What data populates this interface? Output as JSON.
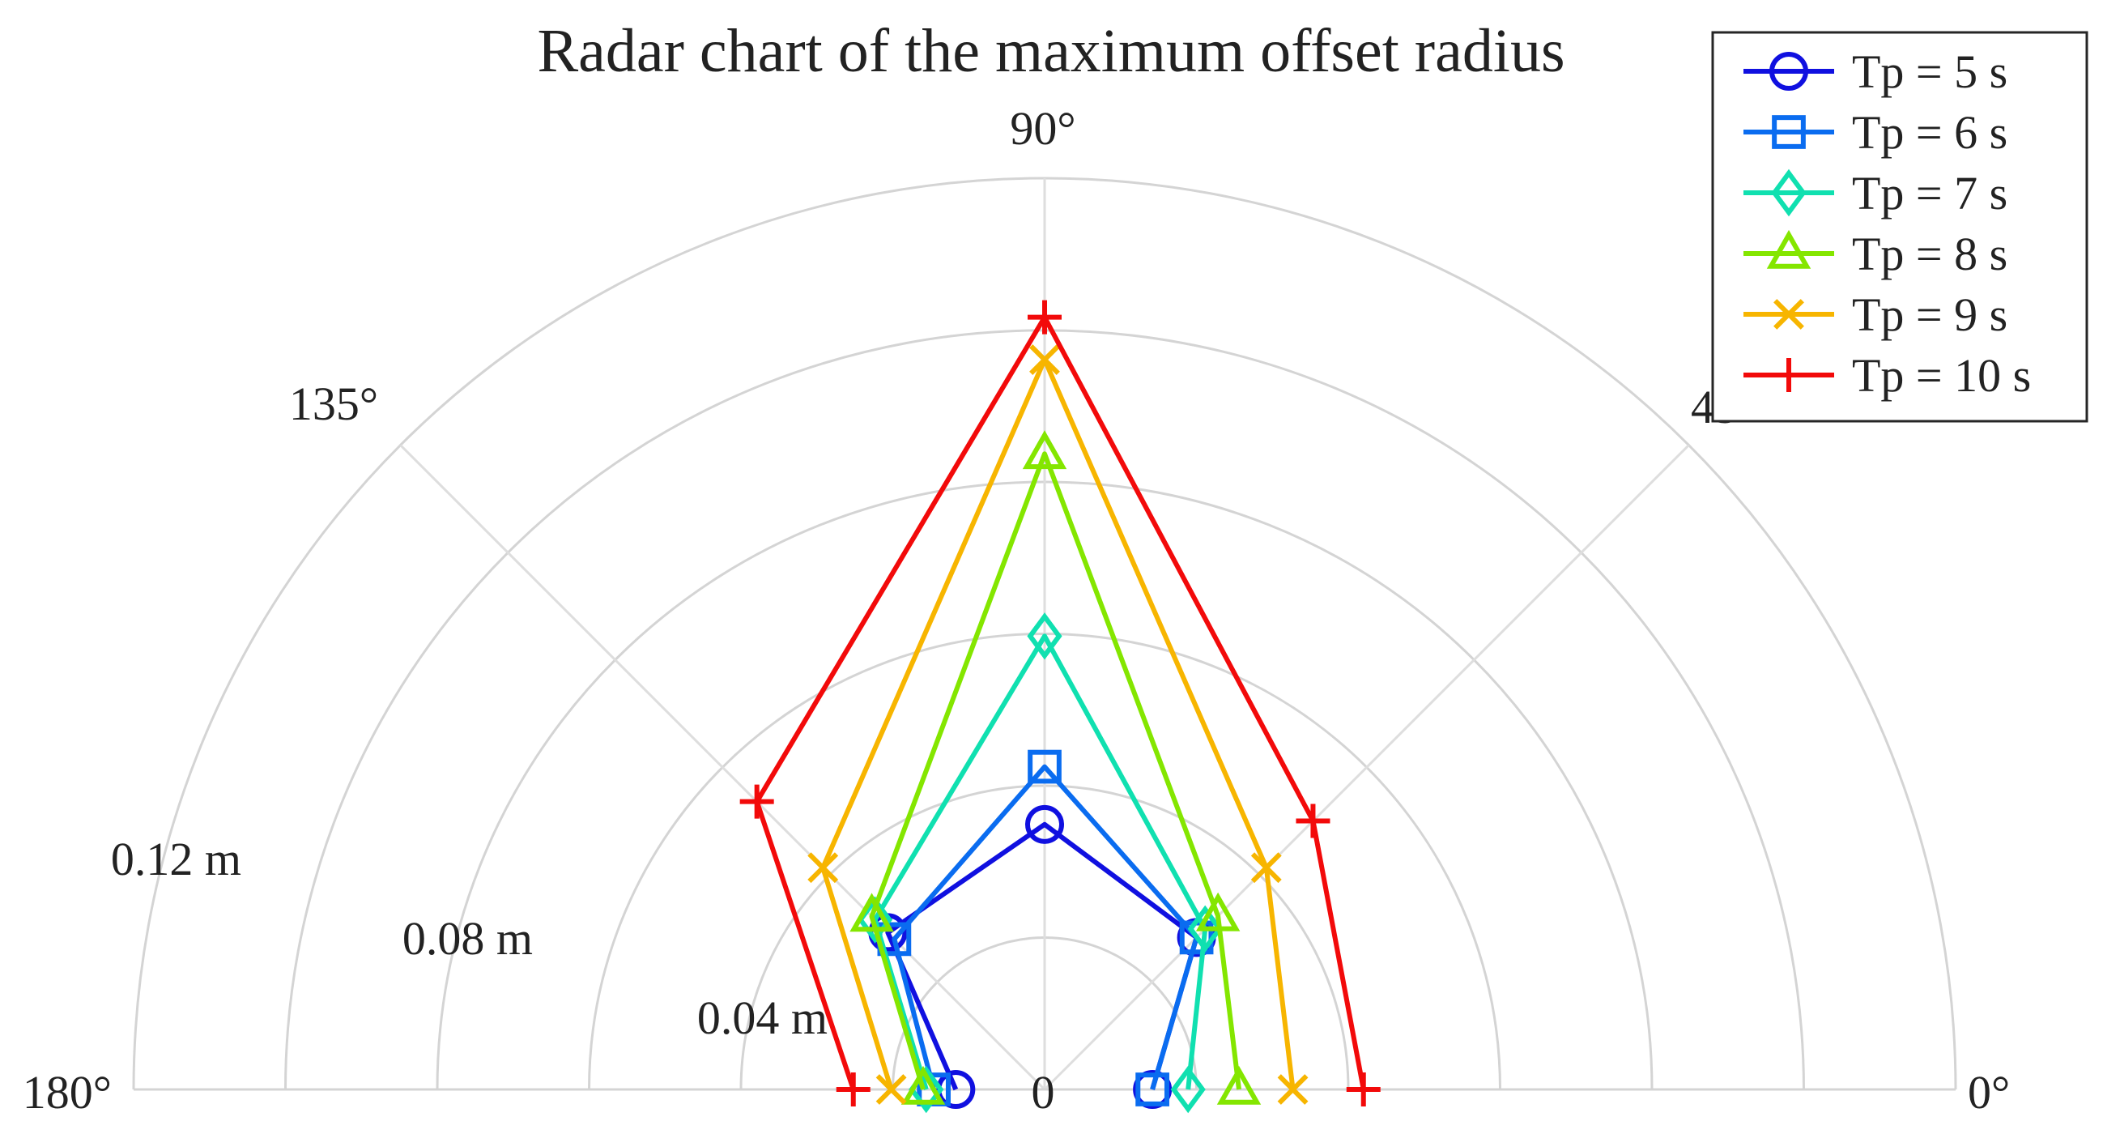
{
  "chart_data": {
    "type": "radar",
    "title": "Radar chart of the maximum offset radius",
    "projection": "polar",
    "theta_range_deg": [
      0,
      180
    ],
    "r_range": [
      0,
      0.12
    ],
    "r_unit": "m",
    "angle_labels": [
      {
        "deg": 0,
        "text": "0°"
      },
      {
        "deg": 45,
        "text": "45°"
      },
      {
        "deg": 90,
        "text": "90°"
      },
      {
        "deg": 135,
        "text": "135°"
      },
      {
        "deg": 180,
        "text": "180°"
      }
    ],
    "radius_labels": [
      {
        "r": 0,
        "text": "0"
      },
      {
        "r": 0.04,
        "text": "0.04 m"
      },
      {
        "r": 0.08,
        "text": "0.08 m"
      },
      {
        "r": 0.12,
        "text": "0.12 m"
      }
    ],
    "theta_deg": [
      0,
      45,
      90,
      135,
      180
    ],
    "grid": true,
    "legend_position": "top-right",
    "series": [
      {
        "name": "Tp = 5 s",
        "color": "#1010e0",
        "marker": "circle",
        "r": [
          0.0142,
          0.0283,
          0.0349,
          0.0292,
          0.0117
        ]
      },
      {
        "name": "Tp = 6 s",
        "color": "#0a6cf0",
        "marker": "square",
        "r": [
          0.0142,
          0.0283,
          0.0425,
          0.028,
          0.0146
        ]
      },
      {
        "name": "Tp = 7 s",
        "color": "#10e0b0",
        "marker": "diamond",
        "r": [
          0.0189,
          0.0299,
          0.0597,
          0.0316,
          0.0156
        ]
      },
      {
        "name": "Tp = 8 s",
        "color": "#84e600",
        "marker": "triangle",
        "r": [
          0.0256,
          0.0323,
          0.0837,
          0.0322,
          0.016
        ]
      },
      {
        "name": "Tp = 9 s",
        "color": "#f7b500",
        "marker": "x",
        "r": [
          0.0327,
          0.0413,
          0.0961,
          0.0413,
          0.0202
        ]
      },
      {
        "name": "Tp = 10 s",
        "color": "#f20a0a",
        "marker": "plus",
        "r": [
          0.042,
          0.05,
          0.1017,
          0.0536,
          0.0252
        ]
      }
    ]
  }
}
